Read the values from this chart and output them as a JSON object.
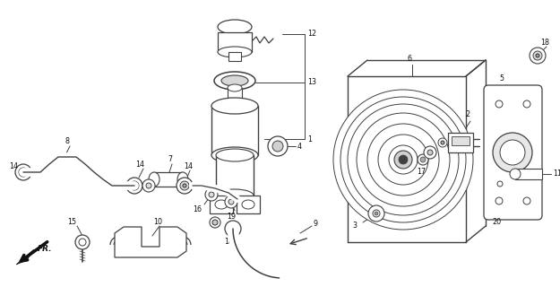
{
  "bg_color": "#ffffff",
  "line_color": "#404040",
  "figsize": [
    6.25,
    3.2
  ],
  "dpi": 100,
  "label_fs": 5.8
}
